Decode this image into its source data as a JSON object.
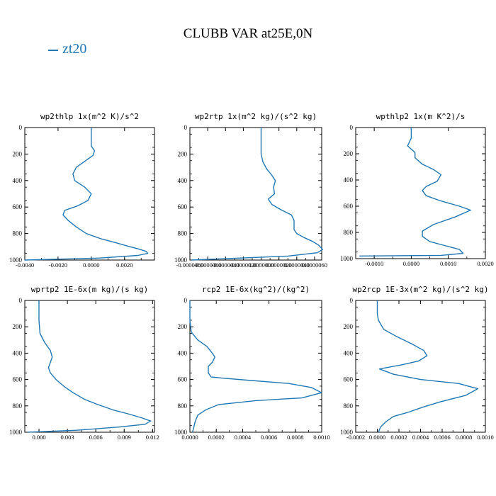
{
  "figure": {
    "title": "CLUBB VAR at25E,0N",
    "legend": {
      "label": "zt20",
      "color": "#1f77b4"
    }
  },
  "chart_data": [
    {
      "type": "line",
      "title": "wp2thlp   1x(m^2 K)/s^2",
      "xlim": [
        -0.004,
        0.0038
      ],
      "xticks": [
        -0.004,
        -0.002,
        0.0,
        0.002
      ],
      "xtick_labels": [
        "-0.0040",
        "-0.0020",
        "0.0000",
        "0.0020"
      ],
      "ylim": [
        1000,
        0
      ],
      "yticks": [
        0,
        200,
        400,
        600,
        800,
        1000
      ],
      "series": [
        {
          "name": "zt20",
          "x": [
            0.0,
            0.0,
            0.0,
            0.0002,
            0.0001,
            -0.0004,
            -0.0009,
            -0.0011,
            -0.001,
            -0.0004,
            0.0,
            -0.0002,
            -0.0008,
            -0.0016,
            -0.0017,
            -0.0014,
            -0.0009,
            -0.0003,
            0.0006,
            0.0015,
            0.0022,
            0.0028,
            0.0033,
            0.0034,
            0.0028,
            0.0005,
            -0.004
          ],
          "y": [
            0,
            60,
            140,
            175,
            210,
            255,
            300,
            350,
            400,
            450,
            500,
            550,
            590,
            625,
            660,
            700,
            750,
            800,
            840,
            870,
            895,
            915,
            935,
            950,
            965,
            985,
            1000
          ]
        }
      ]
    },
    {
      "type": "line",
      "title": "wp2rtp   1x(m^2 kg)/(s^2 kg)",
      "xlim": [
        -8e-06,
        6.8e-06
      ],
      "xticks": [
        -8e-06,
        -6e-06,
        -4e-06,
        -2e-06,
        0.0,
        2e-06,
        4e-06,
        6e-06
      ],
      "xtick_labels": [
        "-0.0000080",
        "-0.0000060",
        "-0.0000040",
        "-0.0000020",
        "0.0000000",
        "0.0000020",
        "0.0000040",
        "0.0000060"
      ],
      "ylim": [
        1000,
        0
      ],
      "yticks": [
        0,
        200,
        400,
        600,
        800,
        1000
      ],
      "series": [
        {
          "name": "zt20",
          "x": [
            0.0,
            0.0,
            0.0,
            2e-07,
            6e-07,
            1.2e-06,
            1.6e-06,
            1.4e-06,
            1.5e-06,
            8e-07,
            1.2e-06,
            2.2e-06,
            3.4e-06,
            3.7e-06,
            3.7e-06,
            3.7e-06,
            4e-06,
            4.8e-06,
            5.8e-06,
            6.5e-06,
            6.9e-06,
            6.3e-06,
            3e-06,
            -7.8e-06
          ],
          "y": [
            0,
            100,
            200,
            260,
            310,
            360,
            400,
            450,
            500,
            540,
            580,
            620,
            660,
            700,
            740,
            770,
            800,
            830,
            860,
            890,
            920,
            945,
            970,
            1000
          ]
        }
      ]
    },
    {
      "type": "line",
      "title": "wpthlp2   1x(m K^2)/s",
      "xlim": [
        -0.0015,
        0.002
      ],
      "xticks": [
        -0.001,
        0.0,
        0.001,
        0.002
      ],
      "xtick_labels": [
        "-0.0010",
        "0.0000",
        "0.0010",
        "0.0020"
      ],
      "ylim": [
        1000,
        0
      ],
      "yticks": [
        0,
        200,
        400,
        600,
        800,
        1000
      ],
      "series": [
        {
          "name": "zt20",
          "x": [
            0.0,
            0.0,
            -0.0001,
            0.0,
            0.0001,
            0.0001,
            0.0003,
            0.0006,
            0.0008,
            0.0007,
            0.0004,
            0.0003,
            0.0004,
            0.0008,
            0.0013,
            0.0016,
            0.0012,
            0.0006,
            0.0003,
            0.0003,
            0.0005,
            0.0009,
            0.0013,
            0.0014,
            0.0008,
            -0.0014
          ],
          "y": [
            0,
            80,
            140,
            165,
            190,
            230,
            280,
            320,
            360,
            410,
            450,
            480,
            520,
            560,
            600,
            630,
            680,
            740,
            790,
            830,
            870,
            900,
            930,
            960,
            975,
            980
          ]
        }
      ]
    },
    {
      "type": "line",
      "title": "wprtp2   1E-6x(m kg)/(s kg)",
      "xlim": [
        -0.0015,
        0.0122
      ],
      "xticks": [
        0.0,
        0.003,
        0.006,
        0.009,
        0.012
      ],
      "xtick_labels": [
        "0.000",
        "0.003",
        "0.006",
        "0.009",
        "0.012"
      ],
      "ylim": [
        1000,
        0
      ],
      "yticks": [
        0,
        200,
        400,
        600,
        800,
        1000
      ],
      "series": [
        {
          "name": "zt20",
          "x": [
            0.0,
            0.0,
            0.0001,
            0.0006,
            0.0012,
            0.0014,
            0.0012,
            0.001,
            0.0012,
            0.0018,
            0.0026,
            0.0036,
            0.0048,
            0.0062,
            0.0078,
            0.0094,
            0.0108,
            0.0118,
            0.0112,
            0.0085,
            0.004,
            -0.0012
          ],
          "y": [
            0,
            150,
            250,
            320,
            380,
            430,
            470,
            510,
            550,
            600,
            650,
            700,
            750,
            790,
            830,
            860,
            890,
            915,
            940,
            960,
            985,
            1000
          ]
        }
      ]
    },
    {
      "type": "line",
      "title": "rcp2   1E-6x(kg^2)/(kg^2)",
      "xlim": [
        0.0,
        0.001
      ],
      "xticks": [
        0.0,
        0.0002,
        0.0004,
        0.0006,
        0.0008,
        0.001
      ],
      "xtick_labels": [
        "0.0000",
        "0.0002",
        "0.0004",
        "0.0006",
        "0.0008",
        "0.0010"
      ],
      "ylim": [
        1000,
        0
      ],
      "yticks": [
        0,
        200,
        400,
        600,
        800,
        1000
      ],
      "series": [
        {
          "name": "zt20",
          "x": [
            0.0,
            0.0,
            1e-05,
            6e-05,
            0.00013,
            0.00017,
            0.00019,
            0.00017,
            0.00014,
            0.00014,
            0.00016,
            0.00025,
            0.0005,
            0.00075,
            0.00092,
            0.001,
            0.00085,
            0.0005,
            0.00022,
            0.00012,
            6e-05,
            4e-05,
            3e-05,
            2e-05
          ],
          "y": [
            0,
            150,
            240,
            300,
            350,
            400,
            430,
            470,
            500,
            550,
            580,
            590,
            610,
            630,
            660,
            700,
            740,
            760,
            790,
            830,
            870,
            920,
            960,
            1000
          ]
        }
      ]
    },
    {
      "type": "line",
      "title": "wp2rcp   1E-3x(m^2 kg)/(s^2 kg)",
      "xlim": [
        -0.0002,
        0.001
      ],
      "xticks": [
        -0.0002,
        0.0,
        0.0002,
        0.0004,
        0.0006,
        0.0008,
        0.001
      ],
      "xtick_labels": [
        "-0.0002",
        "0.0000",
        "0.0002",
        "0.0004",
        "0.0006",
        "0.0008",
        "0.0010"
      ],
      "ylim": [
        1000,
        0
      ],
      "yticks": [
        0,
        200,
        400,
        600,
        800,
        1000
      ],
      "series": [
        {
          "name": "zt20",
          "x": [
            0.0,
            0.0,
            1e-05,
            6e-05,
            0.00017,
            0.00032,
            0.00043,
            0.00046,
            0.00038,
            0.00022,
            2e-05,
            0.00015,
            0.0004,
            0.00075,
            0.00093,
            0.00082,
            0.00058,
            0.00042,
            0.00028,
            0.00015,
            8e-05,
            3e-05,
            1e-05
          ],
          "y": [
            0,
            100,
            150,
            220,
            270,
            330,
            380,
            420,
            460,
            490,
            520,
            560,
            600,
            630,
            670,
            720,
            770,
            810,
            850,
            880,
            920,
            960,
            1000
          ]
        }
      ]
    }
  ]
}
